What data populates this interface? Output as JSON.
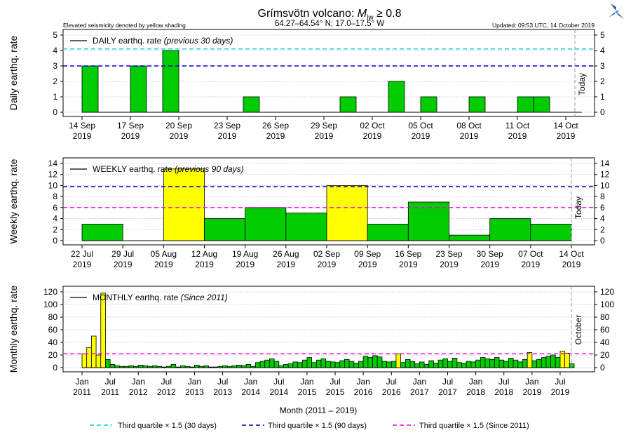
{
  "header": {
    "title_main": "Grímsvötn volcano: ",
    "title_sym": "M",
    "title_sub": "lw",
    "title_tail": " ≥ 0.8",
    "coords": "64.27–64.54° N; 17.0–17.5° W",
    "note": "Elevated seismicity denoted by yellow shading",
    "updated": "Updated: 09:53 UTC, 14 October 2019",
    "logo_icon": "imo-logo-icon",
    "logo_color": "#1f5aa6"
  },
  "colors": {
    "bar": "#00cc00",
    "elevated": "#ffff00",
    "q30": "#00cccc",
    "q90": "#0000cc",
    "qall": "#ee00ee",
    "today": "#999999"
  },
  "legend": {
    "q30": "Third quartile × 1.5 (30 days)",
    "q90": "Third quartile × 1.5 (90 days)",
    "qall": "Third quartile × 1.5 (Since 2011)"
  },
  "chart_data": [
    {
      "type": "bar",
      "ylabel": "Daily earthq. rate",
      "legend_label": "DAILY earthq. rate",
      "legend_qualifier": "(previous 30 days)",
      "ylim": [
        0,
        5
      ],
      "yticks": [
        0,
        1,
        2,
        3,
        4,
        5
      ],
      "x_start": "2019-09-14",
      "xticks": [
        "14 Sep|2019",
        "17 Sep|2019",
        "20 Sep|2019",
        "23 Sep|2019",
        "26 Sep|2019",
        "29 Sep|2019",
        "02 Oct|2019",
        "05 Oct|2019",
        "08 Oct|2019",
        "11 Oct|2019",
        "14 Oct|2019"
      ],
      "values": [
        3,
        0,
        0,
        3,
        0,
        4,
        0,
        0,
        0,
        0,
        1,
        0,
        0,
        0,
        0,
        0,
        1,
        0,
        0,
        2,
        0,
        1,
        0,
        0,
        1,
        0,
        0,
        1,
        1,
        0,
        0
      ],
      "elevated": [],
      "threshold_q30": 4.1,
      "threshold_q90": 3,
      "today_label": "Today",
      "grid": true
    },
    {
      "type": "bar",
      "ylabel": "Weekly earthq. rate",
      "legend_label": "WEEKLY earthq. rate",
      "legend_qualifier": "(previous 90 days)",
      "ylim": [
        0,
        14
      ],
      "yticks": [
        0,
        2,
        4,
        6,
        8,
        10,
        12,
        14
      ],
      "x_start": "2019-07-22",
      "xticks": [
        "22 Jul|2019",
        "29 Jul|2019",
        "05 Aug|2019",
        "12 Aug|2019",
        "19 Aug|2019",
        "26 Aug|2019",
        "02 Sep|2019",
        "09 Sep|2019",
        "16 Sep|2019",
        "23 Sep|2019",
        "30 Sep|2019",
        "07 Oct|2019",
        "14 Oct|2019"
      ],
      "values": [
        3,
        0,
        13,
        4,
        6,
        5,
        10,
        3,
        7,
        1,
        4,
        3
      ],
      "elevated": [
        2,
        6
      ],
      "threshold_q90": 9.8,
      "threshold_all": 6,
      "today_label": "Today",
      "grid": true
    },
    {
      "type": "bar",
      "ylabel": "Monthly earthq. rate",
      "legend_label": "MONTHLY earthq. rate",
      "legend_qualifier": "(Since 2011)",
      "xlabel": "Month (2011 – 2019)",
      "ylim": [
        0,
        120
      ],
      "yticks": [
        0,
        20,
        40,
        60,
        80,
        100,
        120
      ],
      "x_start": "2011-01",
      "xticks": [
        "Jan|2011",
        "Jul|2011",
        "Jan|2012",
        "Jul|2012",
        "Jan|2013",
        "Jul|2013",
        "Jan|2014",
        "Jul|2014",
        "Jan|2015",
        "Jul|2015",
        "Jan|2016",
        "Jul|2016",
        "Jan|2017",
        "Jul|2017",
        "Jan|2018",
        "Jul|2018",
        "Jan|2019",
        "Jul|2019"
      ],
      "values": [
        22,
        32,
        50,
        20,
        118,
        13,
        5,
        3,
        2,
        2,
        3,
        2,
        4,
        3,
        2,
        3,
        2,
        1,
        2,
        5,
        1,
        3,
        2,
        1,
        4,
        2,
        3,
        1,
        1,
        2,
        3,
        2,
        3,
        4,
        3,
        5,
        2,
        8,
        10,
        12,
        14,
        10,
        3,
        5,
        6,
        9,
        8,
        12,
        16,
        8,
        12,
        14,
        10,
        9,
        8,
        11,
        13,
        10,
        7,
        10,
        18,
        16,
        19,
        17,
        10,
        9,
        10,
        22,
        8,
        13,
        10,
        6,
        9,
        5,
        11,
        7,
        12,
        14,
        10,
        15,
        8,
        7,
        10,
        9,
        12,
        16,
        14,
        13,
        16,
        12,
        10,
        15,
        12,
        9,
        13,
        24,
        11,
        13,
        16,
        18,
        20,
        16,
        26,
        23,
        6
      ],
      "elevated": [
        0,
        1,
        2,
        3,
        4,
        67,
        95,
        102,
        103
      ],
      "threshold_all": 22,
      "today_label": "October",
      "grid": true
    }
  ]
}
